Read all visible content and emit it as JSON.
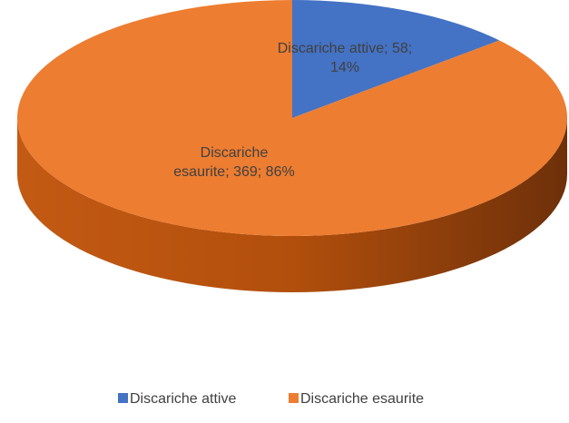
{
  "chart_data": {
    "type": "pie",
    "categories": [
      "Discariche attive",
      "Discariche esaurite"
    ],
    "values": [
      58,
      369
    ],
    "value_labels": [
      "Discariche attive; 58; 14%",
      "Discariche esaurite; 369; 86%"
    ],
    "colors": [
      "#4472c4",
      "#ed7d31"
    ],
    "legend": "bottom"
  }
}
